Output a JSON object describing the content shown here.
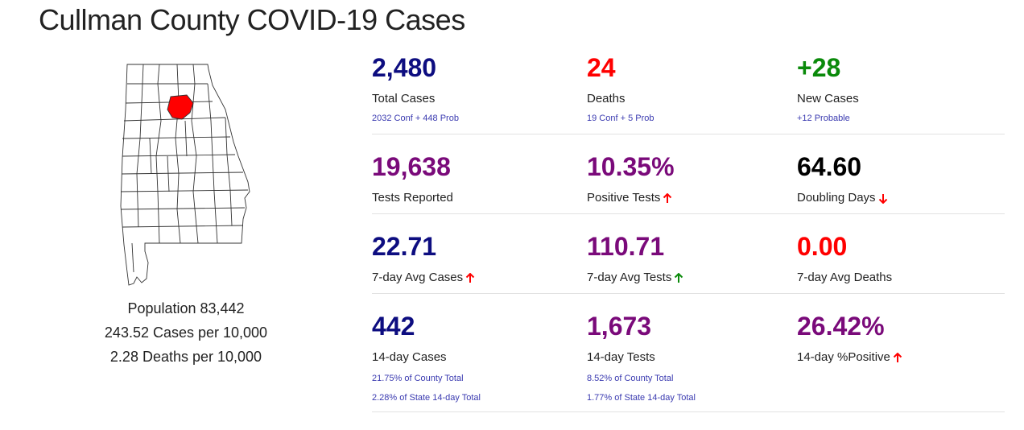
{
  "page": {
    "title": "Cullman County COVID-19 Cases"
  },
  "county": {
    "population": "Population 83,442",
    "cases_per_10k": "243.52 Cases per 10,000",
    "deaths_per_10k": "2.28 Deaths per 10,000"
  },
  "colors": {
    "navy": "#0d0d80",
    "red": "#ff0000",
    "green": "#0a8a0a",
    "purple": "#7a0a7a",
    "black": "#000000",
    "highlight_county": "#ff0000"
  },
  "stats": {
    "total_cases": {
      "value": "2,480",
      "label": "Total Cases",
      "sub": "2032 Conf + 448 Prob"
    },
    "deaths": {
      "value": "24",
      "label": "Deaths",
      "sub": "19 Conf + 5 Prob"
    },
    "new_cases": {
      "value": "+28",
      "label": "New Cases",
      "sub": "+12 Probable"
    },
    "tests_reported": {
      "value": "19,638",
      "label": "Tests Reported"
    },
    "positive_tests": {
      "value": "10.35%",
      "label": "Positive Tests",
      "trend": "up-red-arrow-icon"
    },
    "doubling_days": {
      "value": "64.60",
      "label": "Doubling Days",
      "trend": "down-red-arrow-icon"
    },
    "avg_cases_7d": {
      "value": "22.71",
      "label": "7-day Avg Cases",
      "trend": "up-red-arrow-icon"
    },
    "avg_tests_7d": {
      "value": "110.71",
      "label": "7-day Avg Tests",
      "trend": "up-green-arrow-icon"
    },
    "avg_deaths_7d": {
      "value": "0.00",
      "label": "7-day Avg Deaths"
    },
    "cases_14d": {
      "value": "442",
      "label": "14-day Cases",
      "sub1": "21.75% of County Total",
      "sub2": "2.28% of State 14-day Total"
    },
    "tests_14d": {
      "value": "1,673",
      "label": "14-day Tests",
      "sub1": "8.52% of County Total",
      "sub2": "1.77% of State 14-day Total"
    },
    "positive_14d": {
      "value": "26.42%",
      "label": "14-day %Positive",
      "trend": "up-red-arrow-icon"
    }
  }
}
